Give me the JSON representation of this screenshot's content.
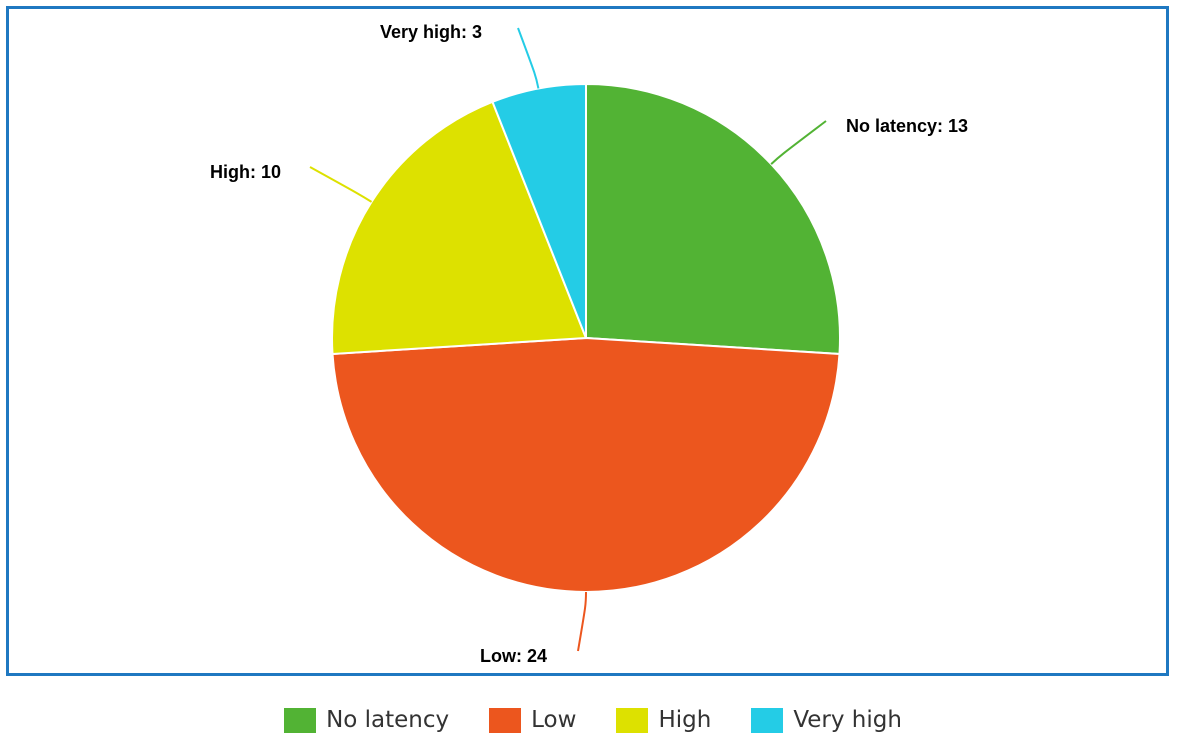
{
  "chart_data": {
    "type": "pie",
    "title": "",
    "slices": [
      {
        "label": "No latency",
        "value": 13,
        "color": "#52b334"
      },
      {
        "label": "Low",
        "value": 24,
        "color": "#ec561e"
      },
      {
        "label": "High",
        "value": 10,
        "color": "#dde100"
      },
      {
        "label": "Very high",
        "value": 3,
        "color": "#24cce6"
      }
    ],
    "data_labels": [
      "No latency: 13",
      "Low: 24",
      "High: 10",
      "Very high: 3"
    ],
    "legend": {
      "placement": "bottom",
      "entries": [
        "No latency",
        "Low",
        "High",
        "Very high"
      ]
    }
  }
}
